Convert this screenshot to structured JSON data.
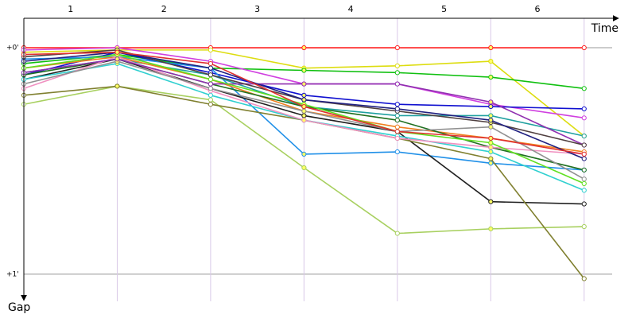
{
  "chart_data": {
    "type": "line",
    "x_label": "Time",
    "y_label": "Gap",
    "x": [
      0,
      1,
      2,
      3,
      4,
      5,
      6
    ],
    "xlim": [
      0,
      6.3
    ],
    "xticks": [
      {
        "value": 0.5,
        "label": "1"
      },
      {
        "value": 1.5,
        "label": "2"
      },
      {
        "value": 2.5,
        "label": "3"
      },
      {
        "value": 3.5,
        "label": "4"
      },
      {
        "value": 4.5,
        "label": "5"
      },
      {
        "value": 5.5,
        "label": "6"
      }
    ],
    "ylim": [
      -0.13,
      1.12
    ],
    "yticks": [
      {
        "value": 0,
        "label": "+0'"
      },
      {
        "value": 1,
        "label": "+1'"
      }
    ],
    "grid": true,
    "series": [
      {
        "color": "#ff2020",
        "values": [
          0,
          0,
          0,
          0,
          0,
          0,
          0
        ]
      },
      {
        "color": "#dddd10",
        "values": [
          0.02,
          0.01,
          0.01,
          0.09,
          0.08,
          0.06,
          0.39
        ]
      },
      {
        "color": "#10c010",
        "values": [
          0.07,
          0.03,
          0.09,
          0.1,
          0.11,
          0.13,
          0.18
        ]
      },
      {
        "color": "#d040e0",
        "values": [
          0.01,
          0,
          0.06,
          0.16,
          0.16,
          0.25,
          0.31
        ]
      },
      {
        "color": "#1010d0",
        "values": [
          0.12,
          0.02,
          0.11,
          0.21,
          0.25,
          0.26,
          0.27
        ]
      },
      {
        "color": "#a8d060",
        "values": [
          0.25,
          0.17,
          0.23,
          0.53,
          0.82,
          0.8,
          0.79
        ]
      },
      {
        "color": "#2090e8",
        "values": [
          0.05,
          0.04,
          0.09,
          0.47,
          0.46,
          0.51,
          0.54
        ]
      },
      {
        "color": "#202020",
        "values": [
          0.14,
          0.05,
          0.18,
          0.3,
          0.37,
          0.68,
          0.69
        ]
      },
      {
        "color": "#808030",
        "values": [
          0.21,
          0.17,
          0.25,
          0.32,
          0.4,
          0.49,
          1.02
        ]
      },
      {
        "color": "#20a0a0",
        "values": [
          0.11,
          0.05,
          0.12,
          0.26,
          0.3,
          0.3,
          0.39
        ]
      },
      {
        "color": "#f08020",
        "values": [
          0.09,
          0.04,
          0.14,
          0.28,
          0.35,
          0.4,
          0.46
        ]
      },
      {
        "color": "#30d0d0",
        "values": [
          0.14,
          0.07,
          0.21,
          0.32,
          0.39,
          0.46,
          0.63
        ]
      },
      {
        "color": "#207020",
        "values": [
          0.12,
          0.05,
          0.16,
          0.26,
          0.32,
          0.44,
          0.54
        ]
      },
      {
        "color": "#f090c0",
        "values": [
          0.18,
          0.04,
          0.19,
          0.32,
          0.4,
          0.44,
          0.47
        ]
      },
      {
        "color": "#909090",
        "values": [
          0.16,
          0.06,
          0.18,
          0.28,
          0.37,
          0.35,
          0.58
        ]
      },
      {
        "color": "#9030b0",
        "values": [
          0.11,
          0.05,
          0.16,
          0.16,
          0.16,
          0.24,
          0.43
        ]
      },
      {
        "color": "#504040",
        "values": [
          0.04,
          0.01,
          0.12,
          0.23,
          0.28,
          0.33,
          0.43
        ]
      },
      {
        "color": "#202080",
        "values": [
          0.06,
          0.02,
          0.09,
          0.23,
          0.27,
          0.32,
          0.49
        ]
      },
      {
        "color": "#60e020",
        "values": [
          0.09,
          0.03,
          0.14,
          0.25,
          0.37,
          0.42,
          0.6
        ]
      },
      {
        "color": "#e03030",
        "values": [
          0.03,
          0.02,
          0.07,
          0.26,
          0.37,
          0.4,
          0.47
        ]
      }
    ]
  }
}
